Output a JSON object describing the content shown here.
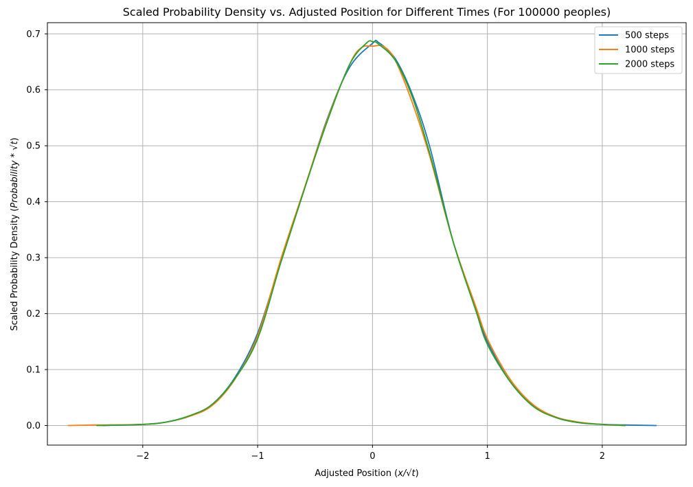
{
  "chart_data": {
    "type": "line",
    "title": "Scaled Probability Density vs. Adjusted Position for Different Times (For 100000 peoples)",
    "xlabel_prefix": "Adjusted Position (",
    "xlabel_math": "x/√t",
    "xlabel_suffix": ")",
    "ylabel_prefix": "Scaled Probability Density (",
    "ylabel_math": "Probability * √t",
    "ylabel_suffix": ")",
    "xlim": [
      -2.83,
      2.73
    ],
    "ylim": [
      -0.035,
      0.72
    ],
    "xticks": [
      -2,
      -1,
      0,
      1,
      2
    ],
    "xtick_labels": [
      "−2",
      "−1",
      "0",
      "1",
      "2"
    ],
    "yticks": [
      0.0,
      0.1,
      0.2,
      0.3,
      0.4,
      0.5,
      0.6,
      0.7
    ],
    "ytick_labels": [
      "0.0",
      "0.1",
      "0.2",
      "0.3",
      "0.4",
      "0.5",
      "0.6",
      "0.7"
    ],
    "grid": true,
    "legend_position": "top-right",
    "series": [
      {
        "name": "500 steps",
        "color": "#1f77b4",
        "x": [
          -2.35,
          -2.0,
          -1.8,
          -1.6,
          -1.4,
          -1.2,
          -1.0,
          -0.8,
          -0.6,
          -0.4,
          -0.2,
          0.0,
          0.05,
          0.2,
          0.35,
          0.5,
          0.7,
          0.9,
          1.0,
          1.2,
          1.4,
          1.6,
          1.8,
          2.0,
          2.2,
          2.47
        ],
        "y": [
          0.0,
          0.002,
          0.006,
          0.016,
          0.037,
          0.085,
          0.165,
          0.293,
          0.418,
          0.545,
          0.64,
          0.683,
          0.685,
          0.655,
          0.59,
          0.497,
          0.33,
          0.208,
          0.15,
          0.078,
          0.035,
          0.014,
          0.005,
          0.002,
          0.001,
          0.0
        ]
      },
      {
        "name": "1000 steps",
        "color": "#ff7f0e",
        "x": [
          -2.65,
          -2.4,
          -2.0,
          -1.8,
          -1.6,
          -1.4,
          -1.2,
          -1.0,
          -0.8,
          -0.6,
          -0.4,
          -0.2,
          -0.1,
          0.0,
          0.1,
          0.2,
          0.35,
          0.5,
          0.7,
          0.9,
          1.0,
          1.2,
          1.4,
          1.6,
          1.8,
          2.0,
          2.2
        ],
        "y": [
          0.0,
          0.001,
          0.002,
          0.006,
          0.016,
          0.035,
          0.082,
          0.16,
          0.296,
          0.42,
          0.543,
          0.645,
          0.675,
          0.678,
          0.677,
          0.652,
          0.575,
          0.48,
          0.33,
          0.212,
          0.155,
          0.082,
          0.037,
          0.015,
          0.006,
          0.002,
          0.0
        ]
      },
      {
        "name": "2000 steps",
        "color": "#2ca02c",
        "x": [
          -2.4,
          -2.0,
          -1.8,
          -1.6,
          -1.4,
          -1.2,
          -1.0,
          -0.8,
          -0.6,
          -0.4,
          -0.2,
          -0.05,
          0.0,
          0.05,
          0.2,
          0.35,
          0.5,
          0.7,
          0.9,
          1.0,
          1.2,
          1.4,
          1.6,
          1.8,
          2.0,
          2.2
        ],
        "y": [
          0.0,
          0.002,
          0.006,
          0.017,
          0.037,
          0.083,
          0.155,
          0.29,
          0.418,
          0.54,
          0.645,
          0.684,
          0.686,
          0.682,
          0.652,
          0.585,
          0.485,
          0.33,
          0.205,
          0.145,
          0.078,
          0.034,
          0.014,
          0.005,
          0.002,
          0.0
        ]
      }
    ]
  }
}
